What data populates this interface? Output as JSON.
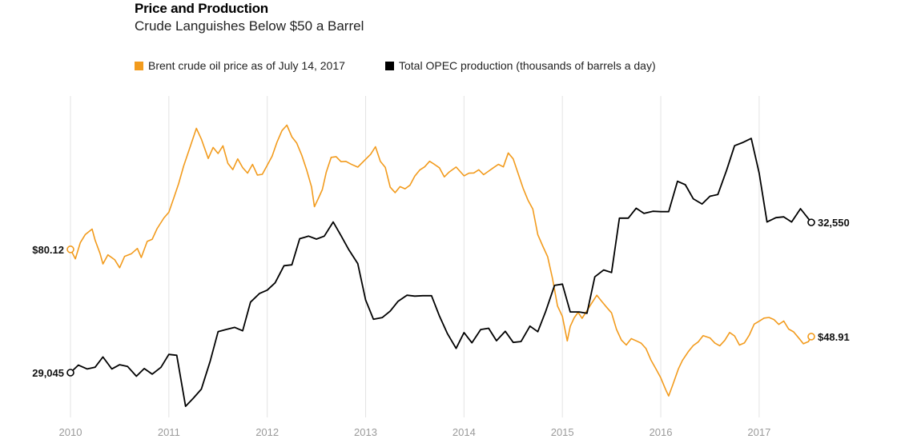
{
  "chart_data": {
    "type": "line",
    "title": "Price and Production",
    "subtitle": "Crude Languishes Below $50 a Barrel",
    "x_ticks": [
      "2010",
      "2011",
      "2012",
      "2013",
      "2014",
      "2015",
      "2016",
      "2017"
    ],
    "xlim": [
      2010.0,
      2017.75
    ],
    "series": [
      {
        "name": "Brent crude oil price as of July 14, 2017",
        "color": "#f29b1d",
        "ylim": [
          20,
          135
        ],
        "start_label": "$80.12",
        "end_label": "$48.91",
        "points": [
          [
            2010.0,
            80.12
          ],
          [
            2010.05,
            77
          ],
          [
            2010.1,
            83
          ],
          [
            2010.15,
            86
          ],
          [
            2010.22,
            88
          ],
          [
            2010.25,
            84
          ],
          [
            2010.3,
            79
          ],
          [
            2010.33,
            75
          ],
          [
            2010.38,
            78
          ],
          [
            2010.45,
            76
          ],
          [
            2010.5,
            73
          ],
          [
            2010.55,
            77
          ],
          [
            2010.62,
            78
          ],
          [
            2010.68,
            80
          ],
          [
            2010.72,
            77
          ],
          [
            2010.78,
            83
          ],
          [
            2010.83,
            84
          ],
          [
            2010.88,
            88
          ],
          [
            2010.95,
            92
          ],
          [
            2011.0,
            94
          ],
          [
            2011.05,
            99
          ],
          [
            2011.1,
            104
          ],
          [
            2011.15,
            110
          ],
          [
            2011.22,
            117
          ],
          [
            2011.28,
            123
          ],
          [
            2011.33,
            119
          ],
          [
            2011.4,
            112
          ],
          [
            2011.45,
            116
          ],
          [
            2011.5,
            114
          ],
          [
            2011.55,
            117
          ],
          [
            2011.6,
            111
          ],
          [
            2011.65,
            109
          ],
          [
            2011.7,
            113
          ],
          [
            2011.75,
            110
          ],
          [
            2011.8,
            108
          ],
          [
            2011.85,
            111
          ],
          [
            2011.9,
            107
          ],
          [
            2011.95,
            107
          ],
          [
            2012.0,
            110
          ],
          [
            2012.05,
            113
          ],
          [
            2012.1,
            118
          ],
          [
            2012.15,
            122
          ],
          [
            2012.2,
            124
          ],
          [
            2012.25,
            120
          ],
          [
            2012.3,
            118
          ],
          [
            2012.35,
            114
          ],
          [
            2012.4,
            109
          ],
          [
            2012.45,
            103
          ],
          [
            2012.48,
            96
          ],
          [
            2012.52,
            99
          ],
          [
            2012.56,
            102
          ],
          [
            2012.6,
            108
          ],
          [
            2012.65,
            113
          ],
          [
            2012.7,
            113
          ],
          [
            2012.75,
            111
          ],
          [
            2012.8,
            111
          ],
          [
            2012.85,
            110
          ],
          [
            2012.92,
            109
          ],
          [
            2013.0,
            112
          ],
          [
            2013.05,
            114
          ],
          [
            2013.1,
            117
          ],
          [
            2013.15,
            112
          ],
          [
            2013.2,
            110
          ],
          [
            2013.25,
            103
          ],
          [
            2013.3,
            101
          ],
          [
            2013.35,
            103
          ],
          [
            2013.4,
            102
          ],
          [
            2013.45,
            103
          ],
          [
            2013.5,
            106
          ],
          [
            2013.55,
            108
          ],
          [
            2013.6,
            109
          ],
          [
            2013.65,
            111
          ],
          [
            2013.7,
            110
          ],
          [
            2013.75,
            109
          ],
          [
            2013.8,
            106
          ],
          [
            2013.85,
            108
          ],
          [
            2013.92,
            110
          ],
          [
            2014.0,
            107
          ],
          [
            2014.05,
            108
          ],
          [
            2014.1,
            108
          ],
          [
            2014.15,
            109
          ],
          [
            2014.2,
            107
          ],
          [
            2014.25,
            108
          ],
          [
            2014.3,
            109
          ],
          [
            2014.35,
            110
          ],
          [
            2014.4,
            109
          ],
          [
            2014.45,
            114
          ],
          [
            2014.5,
            112
          ],
          [
            2014.55,
            107
          ],
          [
            2014.6,
            102
          ],
          [
            2014.65,
            98
          ],
          [
            2014.7,
            95
          ],
          [
            2014.75,
            86
          ],
          [
            2014.8,
            82
          ],
          [
            2014.85,
            78
          ],
          [
            2014.9,
            70
          ],
          [
            2014.95,
            60
          ],
          [
            2015.0,
            56
          ],
          [
            2015.05,
            47
          ],
          [
            2015.08,
            52
          ],
          [
            2015.12,
            55
          ],
          [
            2015.16,
            57
          ],
          [
            2015.2,
            55
          ],
          [
            2015.25,
            58
          ],
          [
            2015.3,
            61
          ],
          [
            2015.35,
            64
          ],
          [
            2015.4,
            62
          ],
          [
            2015.45,
            60
          ],
          [
            2015.5,
            58
          ],
          [
            2015.55,
            52
          ],
          [
            2015.6,
            48
          ],
          [
            2015.65,
            46
          ],
          [
            2015.7,
            48
          ],
          [
            2015.75,
            47
          ],
          [
            2015.8,
            46
          ],
          [
            2015.85,
            44
          ],
          [
            2015.9,
            40
          ],
          [
            2015.95,
            37
          ],
          [
            2016.0,
            34
          ],
          [
            2016.05,
            30
          ],
          [
            2016.08,
            28
          ],
          [
            2016.12,
            32
          ],
          [
            2016.18,
            38
          ],
          [
            2016.22,
            41
          ],
          [
            2016.28,
            44
          ],
          [
            2016.33,
            46
          ],
          [
            2016.38,
            47
          ],
          [
            2016.43,
            49
          ],
          [
            2016.5,
            48
          ],
          [
            2016.55,
            46
          ],
          [
            2016.6,
            45
          ],
          [
            2016.65,
            47
          ],
          [
            2016.7,
            50
          ],
          [
            2016.75,
            49
          ],
          [
            2016.8,
            46
          ],
          [
            2016.85,
            47
          ],
          [
            2016.9,
            50
          ],
          [
            2016.95,
            54
          ],
          [
            2017.0,
            55
          ],
          [
            2017.05,
            56
          ],
          [
            2017.1,
            56
          ],
          [
            2017.15,
            55
          ],
          [
            2017.2,
            53
          ],
          [
            2017.25,
            54
          ],
          [
            2017.3,
            51
          ],
          [
            2017.35,
            50
          ],
          [
            2017.4,
            48
          ],
          [
            2017.45,
            46
          ],
          [
            2017.5,
            47
          ],
          [
            2017.53,
            48.91
          ]
        ]
      },
      {
        "name": "Total OPEC production (thousands of barrels a day)",
        "color": "#000000",
        "ylim": [
          28000,
          35500
        ],
        "start_label": "29,045",
        "end_label": "32,550",
        "points": [
          [
            2010.0,
            29045
          ],
          [
            2010.08,
            29220
          ],
          [
            2010.17,
            29130
          ],
          [
            2010.25,
            29170
          ],
          [
            2010.33,
            29410
          ],
          [
            2010.42,
            29130
          ],
          [
            2010.5,
            29230
          ],
          [
            2010.58,
            29190
          ],
          [
            2010.67,
            28960
          ],
          [
            2010.75,
            29140
          ],
          [
            2010.83,
            29010
          ],
          [
            2010.92,
            29170
          ],
          [
            2011.0,
            29470
          ],
          [
            2011.08,
            29450
          ],
          [
            2011.17,
            28260
          ],
          [
            2011.25,
            28450
          ],
          [
            2011.33,
            28660
          ],
          [
            2011.42,
            29310
          ],
          [
            2011.5,
            30000
          ],
          [
            2011.58,
            30050
          ],
          [
            2011.67,
            30100
          ],
          [
            2011.75,
            30020
          ],
          [
            2011.83,
            30690
          ],
          [
            2011.92,
            30890
          ],
          [
            2012.0,
            30970
          ],
          [
            2012.08,
            31140
          ],
          [
            2012.17,
            31540
          ],
          [
            2012.25,
            31560
          ],
          [
            2012.33,
            32170
          ],
          [
            2012.42,
            32230
          ],
          [
            2012.5,
            32160
          ],
          [
            2012.58,
            32230
          ],
          [
            2012.67,
            32560
          ],
          [
            2012.75,
            32240
          ],
          [
            2012.83,
            31910
          ],
          [
            2012.92,
            31590
          ],
          [
            2013.0,
            30740
          ],
          [
            2013.08,
            30290
          ],
          [
            2013.17,
            30330
          ],
          [
            2013.25,
            30480
          ],
          [
            2013.33,
            30710
          ],
          [
            2013.42,
            30850
          ],
          [
            2013.5,
            30830
          ],
          [
            2013.58,
            30840
          ],
          [
            2013.67,
            30840
          ],
          [
            2013.75,
            30370
          ],
          [
            2013.83,
            29960
          ],
          [
            2013.92,
            29610
          ],
          [
            2014.0,
            29980
          ],
          [
            2014.08,
            29740
          ],
          [
            2014.17,
            30050
          ],
          [
            2014.25,
            30080
          ],
          [
            2014.33,
            29790
          ],
          [
            2014.42,
            30010
          ],
          [
            2014.5,
            29750
          ],
          [
            2014.58,
            29770
          ],
          [
            2014.67,
            30130
          ],
          [
            2014.75,
            30000
          ],
          [
            2014.83,
            30470
          ],
          [
            2014.92,
            31080
          ],
          [
            2015.0,
            31110
          ],
          [
            2015.08,
            30460
          ],
          [
            2015.17,
            30460
          ],
          [
            2015.25,
            30430
          ],
          [
            2015.33,
            31280
          ],
          [
            2015.42,
            31440
          ],
          [
            2015.5,
            31380
          ],
          [
            2015.58,
            32650
          ],
          [
            2015.67,
            32650
          ],
          [
            2015.75,
            32880
          ],
          [
            2015.83,
            32760
          ],
          [
            2015.92,
            32810
          ],
          [
            2016.0,
            32800
          ],
          [
            2016.08,
            32800
          ],
          [
            2016.17,
            33510
          ],
          [
            2016.25,
            33430
          ],
          [
            2016.33,
            33100
          ],
          [
            2016.42,
            32980
          ],
          [
            2016.5,
            33160
          ],
          [
            2016.58,
            33200
          ],
          [
            2016.67,
            33770
          ],
          [
            2016.75,
            34340
          ],
          [
            2016.83,
            34410
          ],
          [
            2016.92,
            34510
          ],
          [
            2017.0,
            33700
          ],
          [
            2017.08,
            32560
          ],
          [
            2017.17,
            32660
          ],
          [
            2017.25,
            32680
          ],
          [
            2017.33,
            32560
          ],
          [
            2017.42,
            32870
          ],
          [
            2017.53,
            32550
          ]
        ]
      }
    ]
  }
}
